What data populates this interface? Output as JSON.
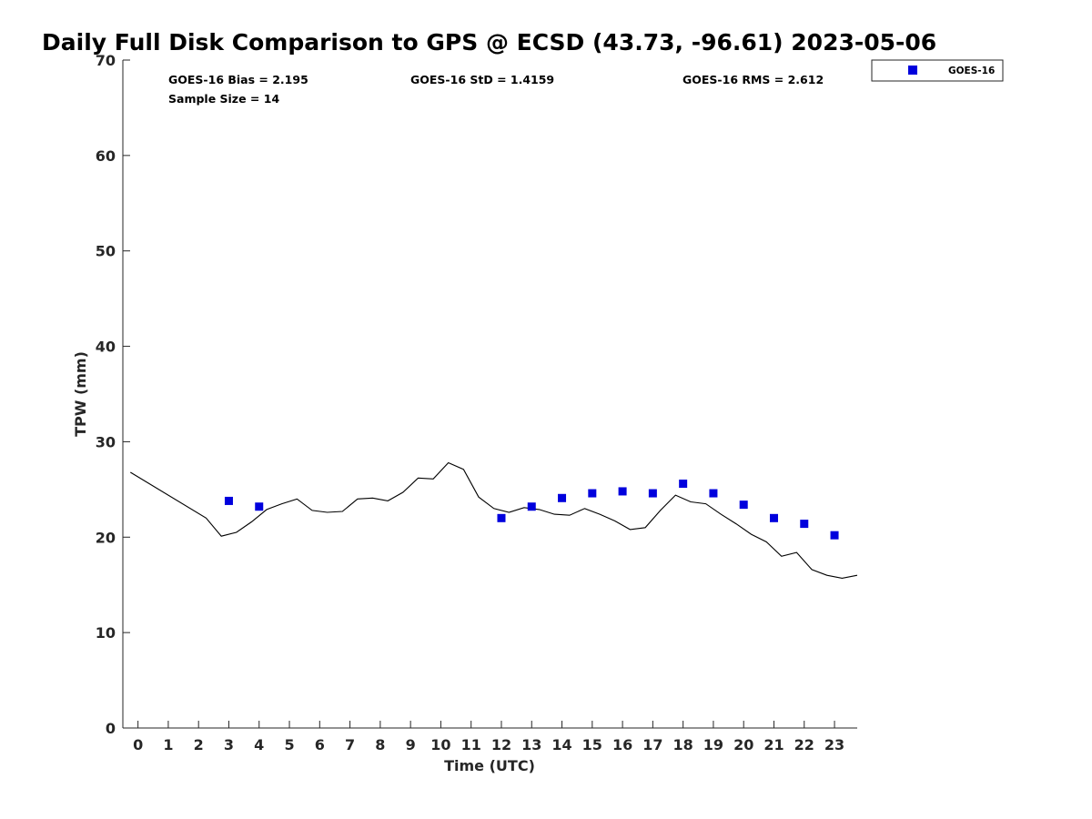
{
  "chart_data": {
    "type": "scatter",
    "title": "Daily Full Disk Comparison to GPS @ ECSD (43.73, -96.61) 2023-05-06",
    "xlabel": "Time (UTC)",
    "ylabel": "TPW (mm)",
    "xlim": [
      -0.5,
      23.75
    ],
    "ylim": [
      0,
      70
    ],
    "x_ticks": [
      0,
      1,
      2,
      3,
      4,
      5,
      6,
      7,
      8,
      9,
      10,
      11,
      12,
      13,
      14,
      15,
      16,
      17,
      18,
      19,
      20,
      21,
      22,
      23
    ],
    "y_ticks": [
      0,
      10,
      20,
      30,
      40,
      50,
      60,
      70
    ],
    "grid": false,
    "legend_position": "top-right",
    "stats": {
      "bias": "GOES-16 Bias = 2.195",
      "std": "GOES-16 StD = 1.4159",
      "rms": "GOES-16 RMS = 2.612",
      "sample": "Sample Size = 14"
    },
    "series": [
      {
        "name": "GOES-16",
        "kind": "scatter",
        "color": "#0000dd",
        "marker": "square",
        "x": [
          3,
          4,
          12,
          13,
          14,
          15,
          16,
          17,
          18,
          19,
          20,
          21,
          22,
          23
        ],
        "y": [
          23.8,
          23.2,
          22.0,
          23.2,
          24.1,
          24.6,
          24.8,
          24.6,
          25.6,
          24.6,
          23.4,
          22.0,
          21.4,
          20.2
        ]
      },
      {
        "kind": "line",
        "color": "#000000",
        "x": [
          -0.25,
          2.25,
          2.75,
          3.25,
          3.75,
          4.25,
          4.75,
          5.25,
          5.75,
          6.25,
          6.75,
          7.25,
          7.75,
          8.25,
          8.75,
          9.25,
          9.75,
          10.25,
          10.75,
          11.25,
          11.75,
          12.25,
          12.75,
          13.25,
          13.75,
          14.25,
          14.75,
          15.25,
          15.75,
          16.25,
          16.75,
          17.25,
          17.75,
          18.25,
          18.75,
          19.25,
          19.75,
          20.25,
          20.75,
          21.25,
          21.75,
          22.25,
          22.75,
          23.25,
          23.75
        ],
        "y": [
          26.8,
          22.0,
          20.1,
          20.5,
          21.6,
          22.9,
          23.5,
          24.0,
          22.8,
          22.6,
          22.7,
          24.0,
          24.1,
          23.8,
          24.7,
          26.2,
          26.1,
          27.8,
          27.1,
          24.2,
          23.0,
          22.6,
          23.1,
          22.9,
          22.4,
          22.3,
          23.0,
          22.4,
          21.7,
          20.8,
          21.0,
          22.8,
          24.4,
          23.7,
          23.5,
          22.4,
          21.4,
          20.3,
          19.5,
          18.0,
          18.4,
          16.6,
          16.0,
          15.7,
          16.0
        ]
      }
    ]
  }
}
